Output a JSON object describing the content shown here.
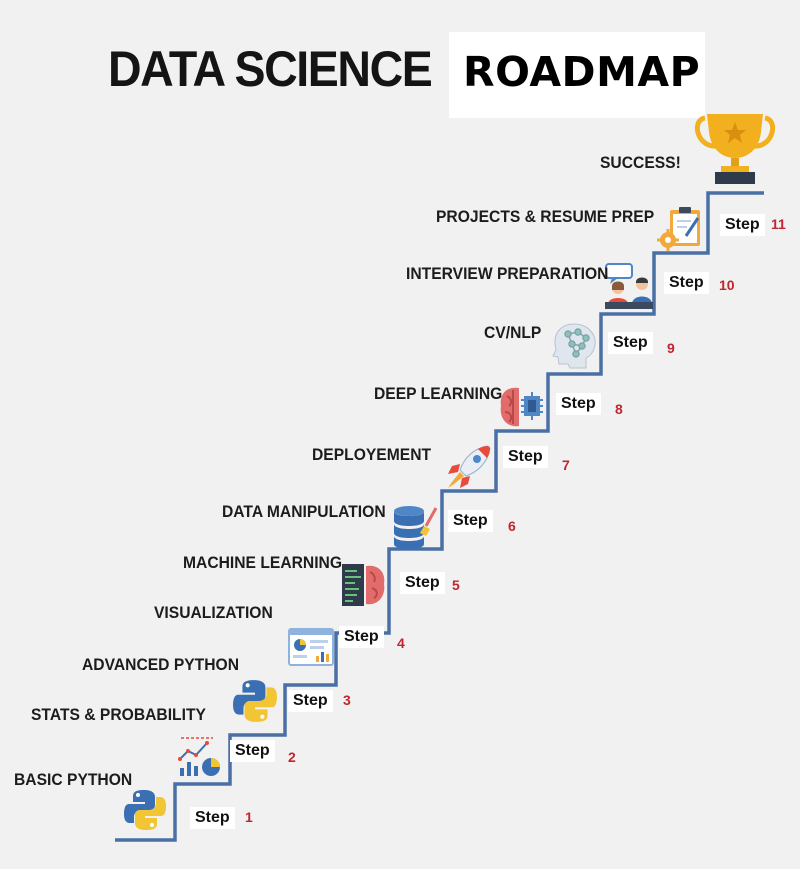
{
  "title": {
    "part1": "DATA SCIENCE",
    "part2": "ROADMAP"
  },
  "step_word": "Step",
  "goal": "SUCCESS!",
  "colors": {
    "staircase": "#4a6fa5",
    "step_number": "#c0262d",
    "trophy": "#f2b01e"
  },
  "steps": [
    {
      "number": "1",
      "label": "BASIC PYTHON",
      "icon": "python-logo-icon"
    },
    {
      "number": "2",
      "label": "STATS & PROBABILITY",
      "icon": "stats-chart-icon"
    },
    {
      "number": "3",
      "label": "ADVANCED PYTHON",
      "icon": "python-logo-icon"
    },
    {
      "number": "4",
      "label": "VISUALIZATION",
      "icon": "dashboard-icon"
    },
    {
      "number": "5",
      "label": "MACHINE LEARNING",
      "icon": "code-brain-icon"
    },
    {
      "number": "6",
      "label": "DATA MANIPULATION",
      "icon": "database-icon"
    },
    {
      "number": "7",
      "label": "DEPLOYEMENT",
      "icon": "rocket-icon"
    },
    {
      "number": "8",
      "label": "DEEP LEARNING",
      "icon": "brain-chip-icon"
    },
    {
      "number": "9",
      "label": "CV/NLP",
      "icon": "ai-head-icon"
    },
    {
      "number": "10",
      "label": "INTERVIEW PREPARATION",
      "icon": "interview-icon"
    },
    {
      "number": "11",
      "label": "PROJECTS & RESUME PREP",
      "icon": "clipboard-gear-icon"
    }
  ]
}
